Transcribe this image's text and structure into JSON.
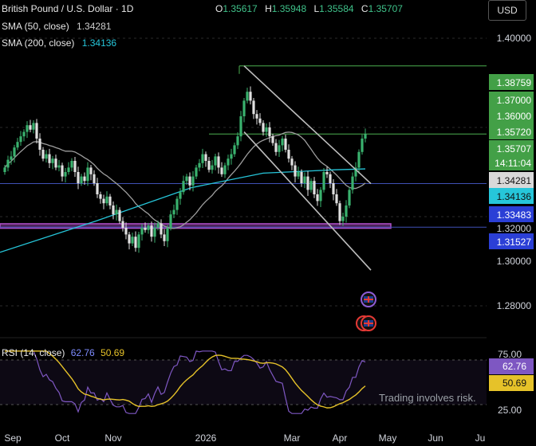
{
  "header": {
    "symbol": "British Pound / U.S. Dollar · 1D",
    "ohlc": {
      "o_label": "O",
      "o": "1.35617",
      "h_label": "H",
      "h": "1.35948",
      "l_label": "L",
      "l": "1.35584",
      "c_label": "C",
      "c": "1.35707"
    },
    "sma50_label": "SMA (50, close)",
    "sma50_value": "1.34281",
    "sma200_label": "SMA (200, close)",
    "sma200_value": "1.34136",
    "currency_button": "USD"
  },
  "colors": {
    "bull": "#26a69a",
    "bear": "#ef5350",
    "candle_bull": "#3ab26e",
    "candle_bear": "#e0e0e0",
    "sma50": "#9e9e9e",
    "sma200": "#26c6da",
    "resistance": "#4caf50",
    "support": "#3f51b5",
    "zone": "#b04fc9",
    "rsi": "#7e57c2",
    "rsi_ma": "#e6c229"
  },
  "price_axis": {
    "ticks": [
      "1.40000",
      "1.30000",
      "1.28000"
    ],
    "labels": [
      {
        "text": "1.38759",
        "kind": "green"
      },
      {
        "text": "1.37000",
        "kind": "green"
      },
      {
        "text": "1.36000",
        "kind": "green"
      },
      {
        "text": "1.35720",
        "kind": "green"
      },
      {
        "text": "1.35707",
        "kind": "green"
      },
      {
        "text": "14:11:04",
        "kind": "green"
      },
      {
        "text": "1.34281",
        "kind": "grey"
      },
      {
        "text": "1.34136",
        "kind": "cyan"
      },
      {
        "text": "1.33483",
        "kind": "blue"
      },
      {
        "text": "1.32000",
        "kind": "plain"
      },
      {
        "text": "1.31527",
        "kind": "blue"
      }
    ]
  },
  "time_axis": [
    "Sep",
    "Oct",
    "Nov",
    "2026",
    "Mar",
    "Apr",
    "May",
    "Jun",
    "Ju"
  ],
  "rsi": {
    "label": "RSI (14, close)",
    "value": "62.76",
    "ma_value": "50.69",
    "ticks": [
      "75.00",
      "25.00"
    ],
    "badges": [
      "62.76",
      "50.69"
    ]
  },
  "disclaimer": "Trading involves risk.",
  "chart_data": {
    "type": "candlestick",
    "symbol": "GBPUSD",
    "timeframe": "1D",
    "xlim": [
      "2025-09",
      "2026-07"
    ],
    "ylim": [
      1.27,
      1.41
    ],
    "closes": [
      1.342,
      1.3455,
      1.347,
      1.351,
      1.3535,
      1.356,
      1.358,
      1.361,
      1.359,
      1.362,
      1.355,
      1.35,
      1.346,
      1.348,
      1.344,
      1.346,
      1.342,
      1.343,
      1.338,
      1.34,
      1.342,
      1.345,
      1.34,
      1.335,
      1.338,
      1.336,
      1.342,
      1.339,
      1.335,
      1.33,
      1.328,
      1.326,
      1.329,
      1.325,
      1.321,
      1.323,
      1.318,
      1.315,
      1.312,
      1.308,
      1.311,
      1.306,
      1.312,
      1.315,
      1.314,
      1.316,
      1.311,
      1.315,
      1.317,
      1.312,
      1.309,
      1.315,
      1.321,
      1.323,
      1.328,
      1.331,
      1.336,
      1.338,
      1.334,
      1.338,
      1.342,
      1.344,
      1.348,
      1.345,
      1.341,
      1.343,
      1.347,
      1.342,
      1.339,
      1.343,
      1.346,
      1.348,
      1.352,
      1.356,
      1.365,
      1.372,
      1.376,
      1.372,
      1.366,
      1.364,
      1.362,
      1.358,
      1.36,
      1.356,
      1.353,
      1.349,
      1.352,
      1.355,
      1.35,
      1.346,
      1.343,
      1.338,
      1.34,
      1.335,
      1.338,
      1.332,
      1.336,
      1.33,
      1.327,
      1.332,
      1.34,
      1.339,
      1.335,
      1.33,
      1.326,
      1.318,
      1.32,
      1.325,
      1.332,
      1.338,
      1.342,
      1.349,
      1.355,
      1.3571
    ],
    "sma50_value": 1.34281,
    "sma200_value": 1.34136,
    "horizontal_levels": [
      1.38759,
      1.35707,
      1.33483,
      1.31527
    ],
    "support_zone": [
      1.3148,
      1.3168
    ],
    "descending_channel": {
      "upper": [
        1.3876,
        1.3348
      ],
      "lower": [
        1.358,
        1.296
      ]
    },
    "rsi": {
      "value": 62.76,
      "ma": 50.69,
      "ylim": [
        20,
        80
      ],
      "levels": [
        70,
        30
      ]
    }
  }
}
